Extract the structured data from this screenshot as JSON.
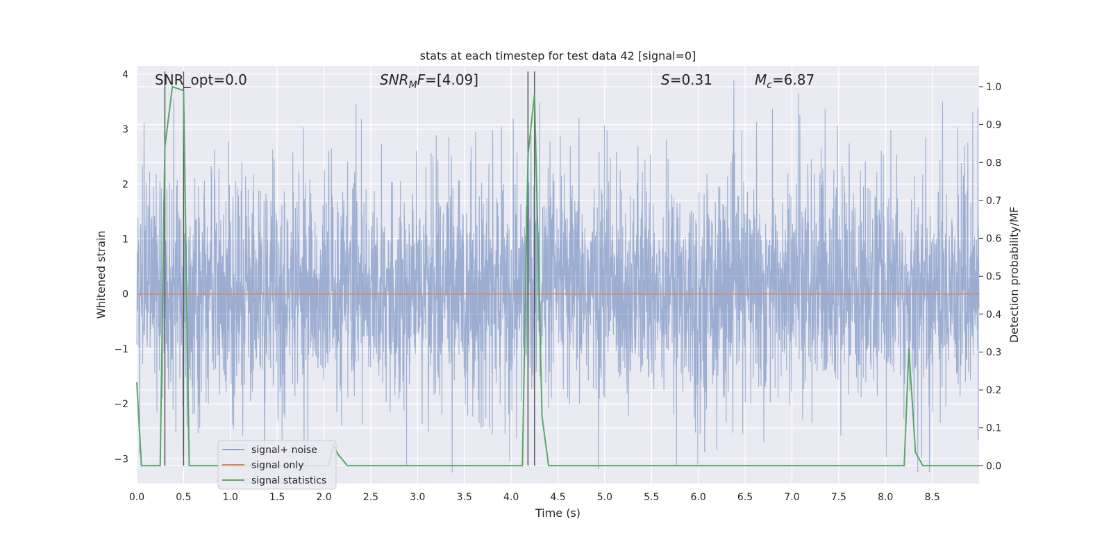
{
  "chart_data": {
    "type": "line",
    "title": "stats at each timestep for test data 42 [signal=0]",
    "xlabel": "Time (s)",
    "ylabel": "Whitened strain",
    "ylabel_right": "Detection probability/MF",
    "xlim": [
      0.0,
      9.0
    ],
    "ylim": [
      -3.45,
      4.15
    ],
    "ylim_right": [
      -0.047,
      1.055
    ],
    "xticks": [
      0.0,
      0.5,
      1.0,
      1.5,
      2.0,
      2.5,
      3.0,
      3.5,
      4.0,
      4.5,
      5.0,
      5.5,
      6.0,
      6.5,
      7.0,
      7.5,
      8.0,
      8.5
    ],
    "xtick_labels": [
      "0.0",
      "0.5",
      "1.0",
      "1.5",
      "2.0",
      "2.5",
      "3.0",
      "3.5",
      "4.0",
      "4.5",
      "5.0",
      "5.5",
      "6.0",
      "6.5",
      "7.0",
      "7.5",
      "8.0",
      "8.5"
    ],
    "yticks": [
      4,
      3,
      2,
      1,
      0,
      -1,
      -2,
      -3
    ],
    "ytick_labels": [
      "4",
      "3",
      "2",
      "1",
      "0",
      "−1",
      "−2",
      "−3"
    ],
    "yticks_right": [
      1.0,
      0.9,
      0.8,
      0.7,
      0.6,
      0.5,
      0.4,
      0.3,
      0.2,
      0.1,
      0.0
    ],
    "ytick_right_labels": [
      "1.0",
      "0.9",
      "0.8",
      "0.7",
      "0.6",
      "0.5",
      "0.4",
      "0.3",
      "0.2",
      "0.1",
      "0.0"
    ],
    "annotations": {
      "snr_opt": "SNR_opt=0.0",
      "snr_mf_main": "SNR",
      "snr_mf_sub": "M",
      "snr_mf_tail": "F",
      "snr_mf_value": "=[4.09]",
      "s_label": "S",
      "s_value": "=0.31",
      "mc_label": "M",
      "mc_sub": "c",
      "mc_value": "=6.87"
    },
    "noise": {
      "name": "signal+ noise",
      "color": "#4c72b0",
      "time_range": [
        0.0,
        9.0
      ],
      "typical_envelope": [
        -1.7,
        1.9
      ],
      "max_peak": 4.0
    },
    "signal": {
      "name": "signal only",
      "color": "#dd8452",
      "x": [
        0.0,
        9.0
      ],
      "y": [
        0.0,
        0.0
      ]
    },
    "stats": {
      "name": "signal statistics",
      "color": "#55a868",
      "x": [
        0.0,
        0.05,
        0.25,
        0.3,
        0.38,
        0.5,
        0.56,
        2.05,
        2.1,
        2.15,
        2.25,
        4.12,
        4.18,
        4.25,
        4.33,
        4.4,
        8.2,
        8.25,
        8.32,
        8.4,
        9.0
      ],
      "y": [
        0.22,
        0.0,
        0.0,
        0.84,
        1.0,
        0.99,
        0.0,
        0.0,
        0.055,
        0.03,
        0.0,
        0.0,
        0.82,
        0.98,
        0.13,
        0.0,
        0.0,
        0.31,
        0.035,
        0.0,
        0.0
      ]
    },
    "vlines": [
      0.3,
      0.5,
      4.18,
      4.25
    ],
    "vlines_color": "#555555",
    "legend": {
      "location": "lower-left",
      "entries": [
        "signal+ noise",
        "signal only",
        "signal statistics"
      ]
    },
    "background": "#eaeaf2",
    "grid": true
  }
}
